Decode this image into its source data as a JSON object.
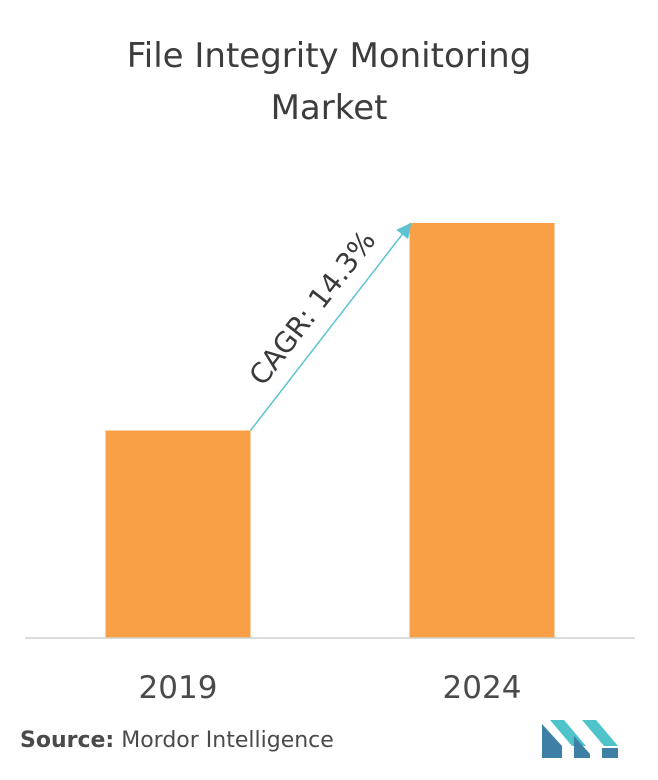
{
  "title_line1": "File Integrity Monitoring",
  "title_line2": "Market",
  "chart_data": {
    "type": "bar",
    "categories": [
      "2019",
      "2024"
    ],
    "values": [
      1.0,
      2.0
    ],
    "annotation": "CAGR: 14.3%",
    "grid": false,
    "bar_color": "#F9A046",
    "arrow_color": "#5BC3D1",
    "axis_color": "#d0d0d0"
  },
  "source": {
    "label": "Source:",
    "text": "Mordor Intelligence"
  },
  "logo": {
    "icon": "mordor-intelligence-logo-icon",
    "colors": [
      "#3E7FA6",
      "#4EC3C9"
    ]
  }
}
